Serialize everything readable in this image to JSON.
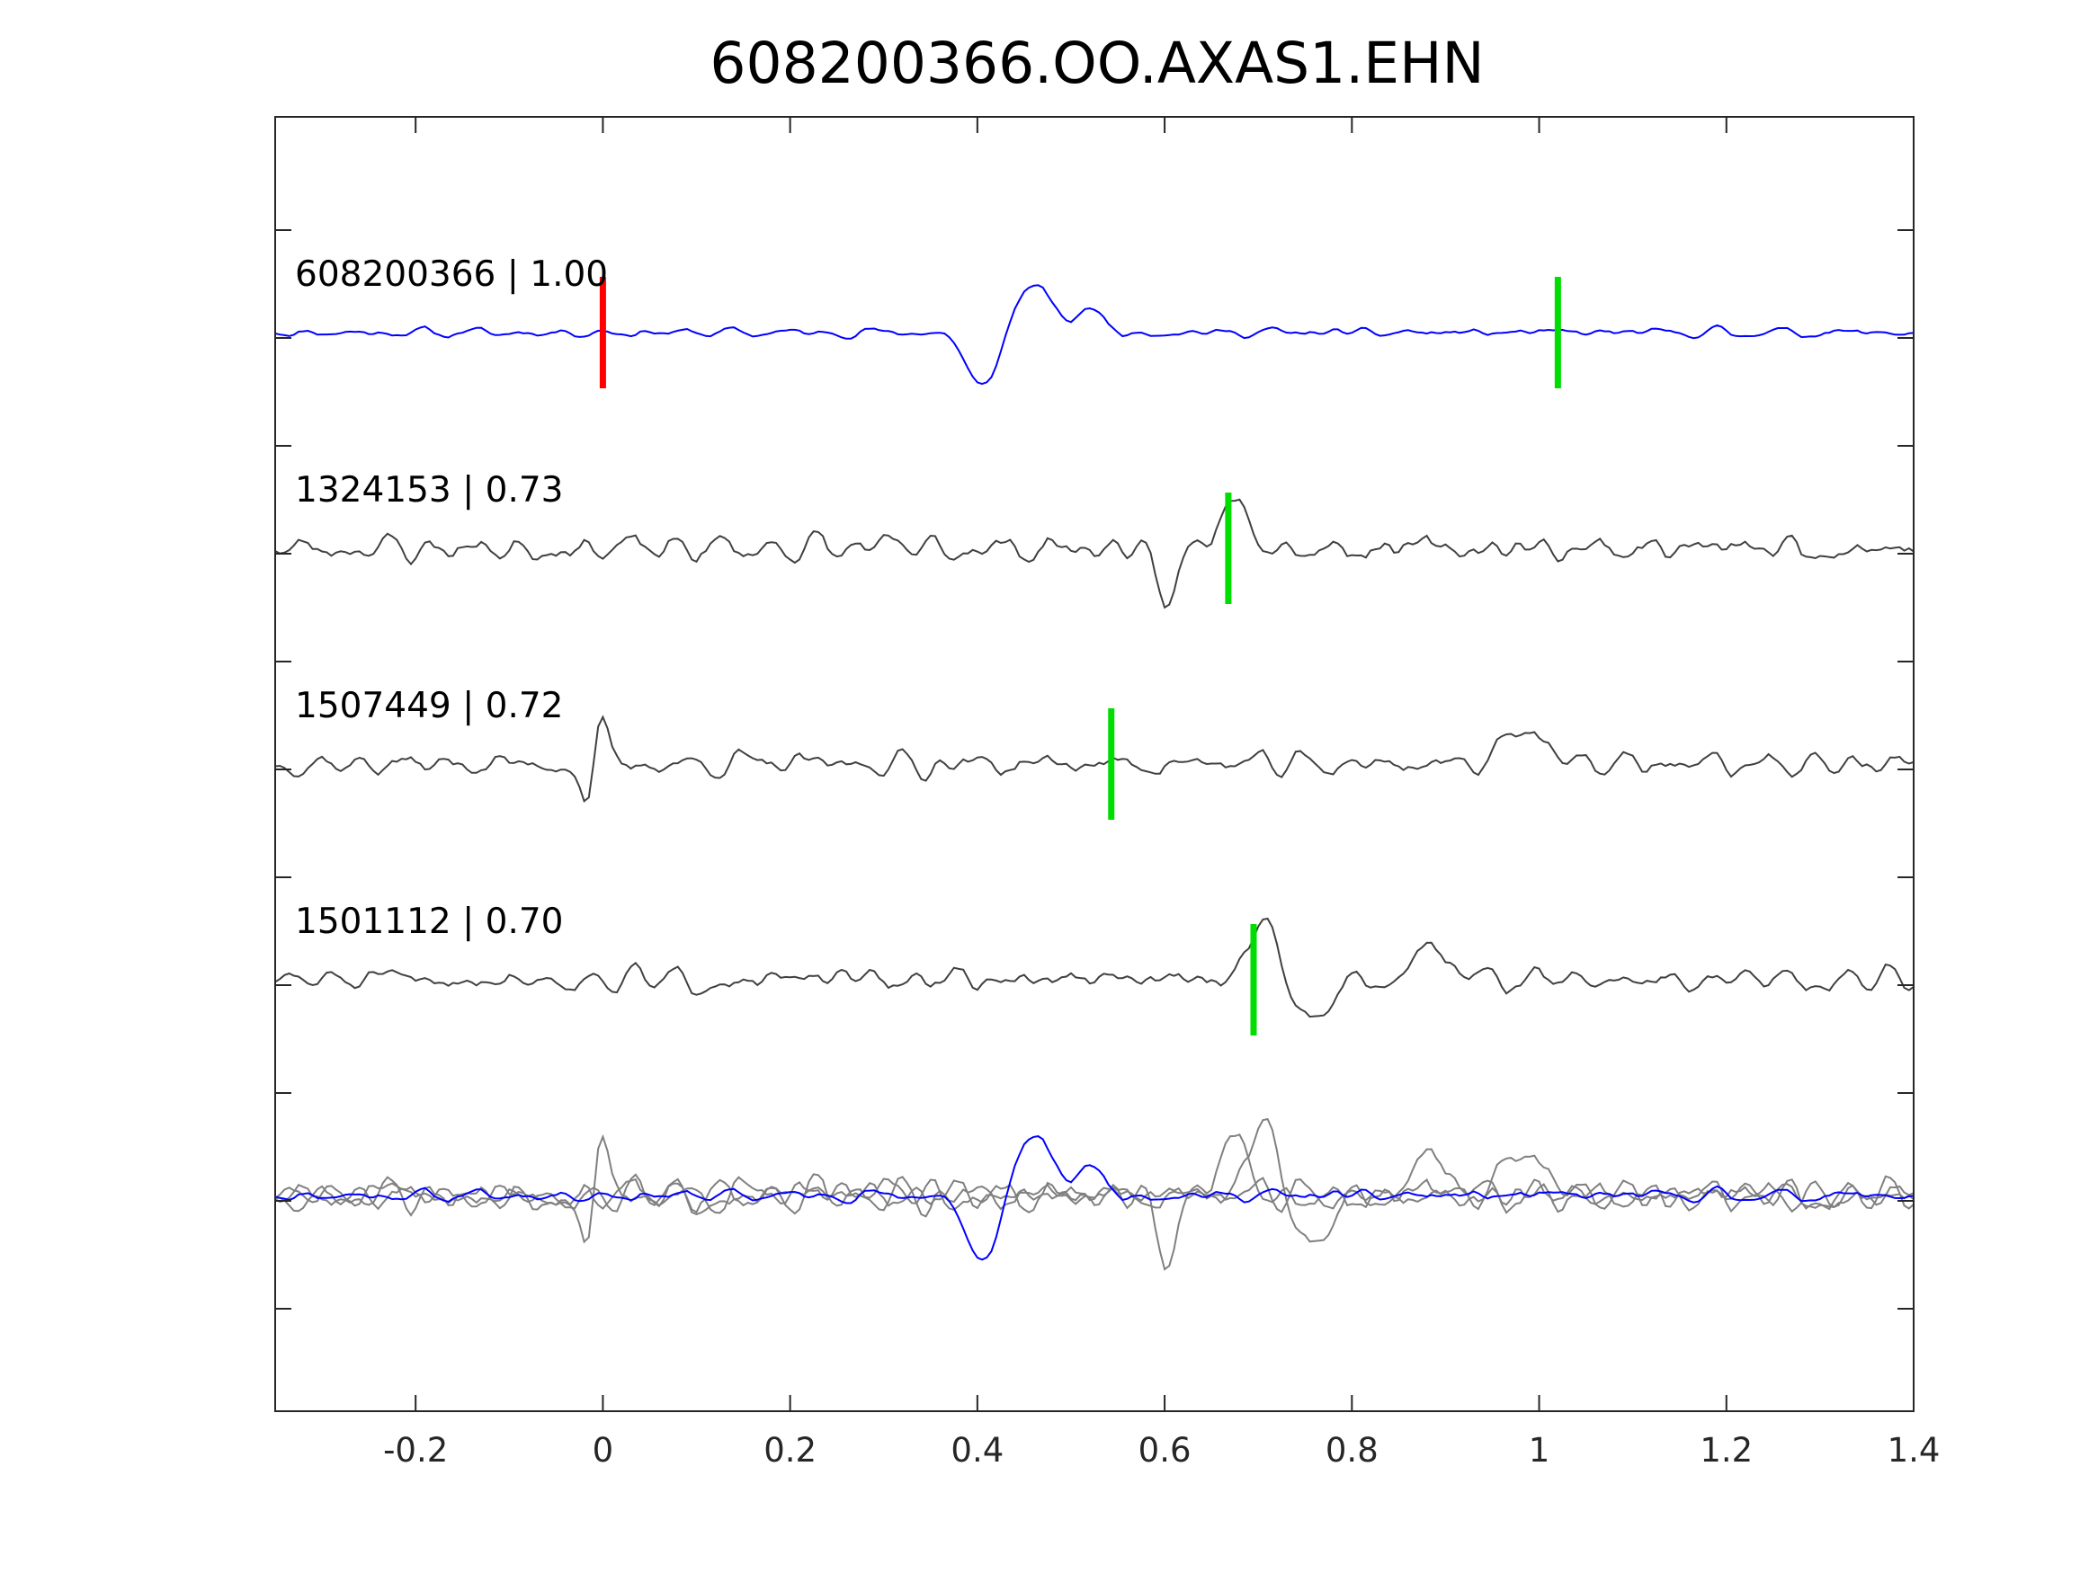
{
  "chart_data": {
    "type": "line",
    "title": "608200366.OO.AXAS1.EHN",
    "xlabel": "",
    "ylabel": "",
    "xlim": [
      -0.35,
      1.4
    ],
    "x_ticks": [
      -0.2,
      0,
      0.2,
      0.4,
      0.6,
      0.8,
      1,
      1.2,
      1.4
    ],
    "x_tick_labels": [
      "-0.2",
      "0",
      "0.2",
      "0.4",
      "0.6",
      "0.8",
      "1",
      "1.2",
      "1.4"
    ],
    "y_tick_labels_visible": false,
    "grid": false,
    "sample_interval_s": 0.005,
    "colors": {
      "master": "#0000ff",
      "match": "#404040",
      "overlay": "#808080",
      "reference_pick": "#ff0000",
      "match_pick": "#00dd00",
      "axes": "#262626"
    },
    "series": [
      {
        "name": "608200366 | 1.00",
        "id": "608200366",
        "correlation": 1.0,
        "color": "#0000ff",
        "picks": [
          {
            "time": 0.0,
            "color": "#ff0000"
          },
          {
            "time": 1.02,
            "color": "#00dd00"
          }
        ],
        "seed": 11,
        "noise_amplitude": 0.13,
        "dominant_period_s": 0.03,
        "events": [
          {
            "time": 0.405,
            "amplitude": -1.0,
            "width_s": 0.025
          },
          {
            "time": 0.46,
            "amplitude": 0.85,
            "width_s": 0.03
          },
          {
            "time": 0.52,
            "amplitude": 0.45,
            "width_s": 0.02
          }
        ]
      },
      {
        "name": "1324153 | 0.73",
        "id": "1324153",
        "correlation": 0.73,
        "color": "#404040",
        "picks": [
          {
            "time": 0.668,
            "color": "#00dd00"
          }
        ],
        "seed": 23,
        "noise_amplitude": 0.36,
        "dominant_period_s": 0.04,
        "events": [
          {
            "time": 0.6,
            "amplitude": -0.85,
            "width_s": 0.02
          },
          {
            "time": 0.675,
            "amplitude": 1.0,
            "width_s": 0.025
          }
        ]
      },
      {
        "name": "1507449 | 0.72",
        "id": "1507449",
        "correlation": 0.72,
        "color": "#404040",
        "picks": [
          {
            "time": 0.543,
            "color": "#00dd00"
          }
        ],
        "seed": 37,
        "noise_amplitude": 0.3,
        "dominant_period_s": 0.04,
        "events": [
          {
            "time": -0.015,
            "amplitude": -1.0,
            "width_s": 0.012
          },
          {
            "time": -0.005,
            "amplitude": 1.0,
            "width_s": 0.012
          },
          {
            "time": 0.98,
            "amplitude": 0.7,
            "width_s": 0.03
          }
        ]
      },
      {
        "name": "1501112 | 0.70",
        "id": "1501112",
        "correlation": 0.7,
        "color": "#404040",
        "picks": [
          {
            "time": 0.695,
            "color": "#00dd00"
          }
        ],
        "seed": 51,
        "noise_amplitude": 0.3,
        "dominant_period_s": 0.04,
        "events": [
          {
            "time": 0.705,
            "amplitude": 1.0,
            "width_s": 0.025
          },
          {
            "time": 0.755,
            "amplitude": -0.9,
            "width_s": 0.02
          },
          {
            "time": 0.885,
            "amplitude": 0.6,
            "width_s": 0.03
          }
        ]
      }
    ],
    "overlay": {
      "description_shown": false,
      "series_order": [
        "1324153 | 0.73",
        "1507449 | 0.72",
        "1501112 | 0.70",
        "608200366 | 1.00"
      ]
    }
  }
}
